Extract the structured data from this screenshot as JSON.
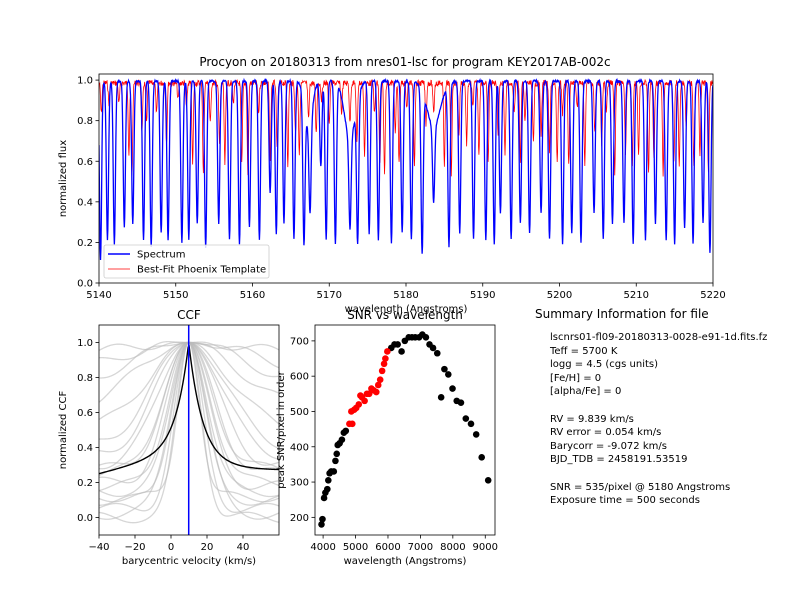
{
  "figure": {
    "title": "Procyon on 20180313 from nres01-lsc for program KEY2017AB-002c"
  },
  "colors": {
    "spectrum": "#0000ff",
    "template": "#ff0000",
    "ccf_mean": "#000000",
    "ccf_orders": "#bbbbbb",
    "ccf_rv_line": "#0000ff",
    "snr_black": "#000000",
    "snr_red": "#ff0000"
  },
  "chart_data": [
    {
      "id": "spectrum",
      "type": "line",
      "title": "",
      "xlabel": "wavelength (Angstroms)",
      "ylabel": "normalized flux",
      "xlim": [
        5140,
        5220
      ],
      "ylim": [
        0,
        1.03
      ],
      "xticks": [
        "5140",
        "5150",
        "5160",
        "5170",
        "5180",
        "5190",
        "5200",
        "5210",
        "5220"
      ],
      "yticks": [
        "0.0",
        "0.2",
        "0.4",
        "0.6",
        "0.8",
        "1.0"
      ],
      "legend": {
        "location": "lower-left",
        "entries": [
          "Spectrum",
          "Best-Fit Phoenix Template"
        ]
      },
      "series": [
        {
          "name": "Spectrum",
          "color": "#0000ff",
          "kind": "absorption lines, continuum ~1.0",
          "lines": [
            [
              5140.2,
              0.12
            ],
            [
              5141.1,
              0.22
            ],
            [
              5142.0,
              0.2
            ],
            [
              5143.3,
              0.28
            ],
            [
              5144.4,
              0.3
            ],
            [
              5145.8,
              0.22
            ],
            [
              5146.8,
              0.18
            ],
            [
              5148.1,
              0.25
            ],
            [
              5149.0,
              0.22
            ],
            [
              5150.8,
              0.2
            ],
            [
              5151.7,
              0.22
            ],
            [
              5152.8,
              0.3
            ],
            [
              5153.9,
              0.18
            ],
            [
              5155.6,
              0.3
            ],
            [
              5157.0,
              0.22
            ],
            [
              5158.3,
              0.2
            ],
            [
              5159.6,
              0.28
            ],
            [
              5160.9,
              0.22
            ],
            [
              5162.3,
              0.45
            ],
            [
              5163.1,
              0.25
            ],
            [
              5164.1,
              0.3
            ],
            [
              5165.4,
              0.22
            ],
            [
              5166.7,
              0.3
            ],
            [
              5167.5,
              0.55
            ],
            [
              5168.9,
              0.58
            ],
            [
              5169.6,
              0.22
            ],
            [
              5170.8,
              0.2
            ],
            [
              5172.7,
              0.55
            ],
            [
              5173.7,
              0.3
            ],
            [
              5175.2,
              0.25
            ],
            [
              5176.4,
              0.22
            ],
            [
              5178.1,
              0.2
            ],
            [
              5179.5,
              0.25
            ],
            [
              5180.7,
              0.22
            ],
            [
              5182.1,
              0.2
            ],
            [
              5183.6,
              0.62
            ],
            [
              5185.6,
              0.2
            ],
            [
              5187.0,
              0.25
            ],
            [
              5188.8,
              0.22
            ],
            [
              5190.4,
              0.22
            ],
            [
              5191.5,
              0.2
            ],
            [
              5192.3,
              0.35
            ],
            [
              5193.7,
              0.22
            ],
            [
              5194.9,
              0.3
            ],
            [
              5196.1,
              0.25
            ],
            [
              5197.6,
              0.35
            ],
            [
              5198.7,
              0.22
            ],
            [
              5200.4,
              0.2
            ],
            [
              5201.6,
              0.25
            ],
            [
              5202.8,
              0.2
            ],
            [
              5204.5,
              0.35
            ],
            [
              5205.7,
              0.22
            ],
            [
              5206.9,
              0.3
            ],
            [
              5208.4,
              0.3
            ],
            [
              5209.6,
              0.2
            ],
            [
              5211.2,
              0.22
            ],
            [
              5212.5,
              0.3
            ],
            [
              5213.9,
              0.22
            ],
            [
              5215.0,
              0.2
            ],
            [
              5216.3,
              0.28
            ],
            [
              5217.4,
              0.2
            ],
            [
              5218.7,
              0.3
            ],
            [
              5219.6,
              0.15
            ]
          ],
          "broad_lines": [
            [
              5167.3,
              0.78,
              0.5
            ],
            [
              5172.7,
              0.72,
              0.7
            ],
            [
              5183.6,
              0.78,
              0.9
            ]
          ]
        },
        {
          "name": "Best-Fit Phoenix Template",
          "color": "#ff0000",
          "kind": "absorption lines, continuum ~1.0",
          "lines": [
            [
              5140.3,
              0.85
            ],
            [
              5141.3,
              0.9
            ],
            [
              5142.6,
              0.9
            ],
            [
              5143.9,
              0.65
            ],
            [
              5144.3,
              0.55
            ],
            [
              5145.6,
              0.75
            ],
            [
              5146.2,
              0.8
            ],
            [
              5147.5,
              0.85
            ],
            [
              5148.8,
              0.7
            ],
            [
              5150.3,
              0.92
            ],
            [
              5151.4,
              0.88
            ],
            [
              5152.2,
              0.6
            ],
            [
              5153.6,
              0.55
            ],
            [
              5154.5,
              0.8
            ],
            [
              5155.7,
              0.7
            ],
            [
              5156.4,
              0.6
            ],
            [
              5157.5,
              0.9
            ],
            [
              5158.6,
              0.6
            ],
            [
              5159.4,
              0.55
            ],
            [
              5160.8,
              0.85
            ],
            [
              5162.3,
              0.62
            ],
            [
              5163.2,
              0.68
            ],
            [
              5164.6,
              0.6
            ],
            [
              5165.6,
              0.75
            ],
            [
              5166.1,
              0.65
            ],
            [
              5167.3,
              0.82
            ],
            [
              5168.3,
              0.75
            ],
            [
              5169.0,
              0.92
            ],
            [
              5170.0,
              0.8
            ],
            [
              5171.6,
              0.85
            ],
            [
              5172.7,
              0.8
            ],
            [
              5173.6,
              0.7
            ],
            [
              5174.6,
              0.65
            ],
            [
              5175.9,
              0.85
            ],
            [
              5176.6,
              0.6
            ],
            [
              5177.2,
              0.55
            ],
            [
              5178.6,
              0.75
            ],
            [
              5179.1,
              0.6
            ],
            [
              5180.1,
              0.88
            ],
            [
              5181.1,
              0.6
            ],
            [
              5182.6,
              0.8
            ],
            [
              5183.6,
              0.85
            ],
            [
              5185.0,
              0.6
            ],
            [
              5185.9,
              0.55
            ],
            [
              5186.9,
              0.75
            ],
            [
              5187.9,
              0.7
            ],
            [
              5188.7,
              0.88
            ],
            [
              5189.5,
              0.65
            ],
            [
              5190.7,
              0.6
            ],
            [
              5192.0,
              0.75
            ],
            [
              5192.9,
              0.65
            ],
            [
              5194.1,
              0.85
            ],
            [
              5194.9,
              0.6
            ],
            [
              5195.5,
              0.8
            ],
            [
              5196.6,
              0.7
            ],
            [
              5197.6,
              0.75
            ],
            [
              5198.7,
              0.65
            ],
            [
              5199.7,
              0.6
            ],
            [
              5200.4,
              0.85
            ],
            [
              5201.2,
              0.6
            ],
            [
              5202.3,
              0.88
            ],
            [
              5203.3,
              0.6
            ],
            [
              5204.6,
              0.75
            ],
            [
              5205.5,
              0.7
            ],
            [
              5206.1,
              0.85
            ],
            [
              5207.2,
              0.55
            ],
            [
              5208.6,
              0.65
            ],
            [
              5209.5,
              0.6
            ],
            [
              5210.3,
              0.65
            ],
            [
              5211.6,
              0.55
            ],
            [
              5212.3,
              0.62
            ],
            [
              5213.5,
              0.55
            ],
            [
              5214.9,
              0.6
            ],
            [
              5215.6,
              0.6
            ],
            [
              5216.5,
              0.8
            ],
            [
              5217.5,
              0.6
            ],
            [
              5218.3,
              0.65
            ],
            [
              5219.4,
              0.55
            ]
          ]
        }
      ]
    },
    {
      "id": "ccf",
      "type": "line",
      "title": "CCF",
      "xlabel": "barycentric velocity (km/s)",
      "ylabel": "normalized CCF",
      "xlim": [
        -40,
        60
      ],
      "ylim": [
        -0.1,
        1.1
      ],
      "xticks": [
        "−40",
        "−20",
        "0",
        "20",
        "40"
      ],
      "yticks": [
        "0.0",
        "0.2",
        "0.4",
        "0.6",
        "0.8",
        "1.0"
      ],
      "rv_line": 9.839,
      "mean_ccf": {
        "center": 9.839,
        "peak": 1.0,
        "baseline": 0.25,
        "wings_right": 0.27,
        "width": 7
      },
      "order_ccfs": [
        {
          "base": 0.9,
          "width": 40
        },
        {
          "base": 0.82,
          "width": 35
        },
        {
          "base": 0.75,
          "width": 30
        },
        {
          "base": 0.6,
          "width": 28
        },
        {
          "base": 0.5,
          "width": 22
        },
        {
          "base": 0.35,
          "width": 18
        },
        {
          "base": 0.3,
          "width": 16
        },
        {
          "base": 0.25,
          "width": 14
        },
        {
          "base": 0.2,
          "width": 12
        },
        {
          "base": 0.15,
          "width": 10
        },
        {
          "base": 0.1,
          "width": 9
        },
        {
          "base": 0.05,
          "width": 8
        },
        {
          "base": 0.0,
          "width": 7
        },
        {
          "base": 0.12,
          "width": 6
        },
        {
          "base": 0.18,
          "width": 11
        },
        {
          "base": 0.28,
          "width": 13
        },
        {
          "base": 0.4,
          "width": 20
        },
        {
          "base": 0.02,
          "width": 10
        }
      ]
    },
    {
      "id": "snr",
      "type": "scatter",
      "title": "SNR vs wavelength",
      "xlabel": "wavelength (Angstroms)",
      "ylabel": "peak SNR/pixel in order",
      "xlim": [
        3750,
        9300
      ],
      "ylim": [
        150,
        745
      ],
      "xticks": [
        "4000",
        "5000",
        "6000",
        "7000",
        "8000",
        "9000"
      ],
      "yticks": [
        "200",
        "300",
        "400",
        "500",
        "600",
        "700"
      ],
      "series": [
        {
          "name": "orders",
          "color": "#000000",
          "points": [
            [
              3950,
              180
            ],
            [
              3980,
              195
            ],
            [
              4030,
              255
            ],
            [
              4070,
              270
            ],
            [
              4130,
              280
            ],
            [
              4160,
              305
            ],
            [
              4200,
              325
            ],
            [
              4250,
              330
            ],
            [
              4330,
              330
            ],
            [
              4380,
              360
            ],
            [
              4420,
              380
            ],
            [
              4450,
              405
            ],
            [
              4510,
              410
            ],
            [
              4580,
              420
            ],
            [
              4640,
              440
            ],
            [
              4700,
              445
            ],
            [
              6100,
              680
            ],
            [
              6200,
              690
            ],
            [
              6300,
              690
            ],
            [
              6420,
              670
            ],
            [
              6520,
              700
            ],
            [
              6640,
              710
            ],
            [
              6740,
              710
            ],
            [
              6840,
              710
            ],
            [
              6960,
              710
            ],
            [
              7060,
              718
            ],
            [
              7170,
              710
            ],
            [
              7280,
              690
            ],
            [
              7390,
              680
            ],
            [
              7520,
              665
            ],
            [
              7640,
              540
            ],
            [
              7740,
              620
            ],
            [
              7860,
              605
            ],
            [
              7990,
              565
            ],
            [
              8120,
              530
            ],
            [
              8250,
              525
            ],
            [
              8400,
              480
            ],
            [
              8560,
              465
            ],
            [
              8720,
              435
            ],
            [
              8890,
              370
            ],
            [
              9090,
              305
            ]
          ]
        },
        {
          "name": "fit orders",
          "color": "#ff0000",
          "points": [
            [
              4810,
              465
            ],
            [
              4870,
              500
            ],
            [
              4900,
              465
            ],
            [
              4960,
              505
            ],
            [
              5020,
              510
            ],
            [
              5100,
              520
            ],
            [
              5150,
              545
            ],
            [
              5200,
              540
            ],
            [
              5280,
              530
            ],
            [
              5350,
              550
            ],
            [
              5420,
              550
            ],
            [
              5490,
              565
            ],
            [
              5560,
              560
            ],
            [
              5640,
              555
            ],
            [
              5700,
              575
            ],
            [
              5760,
              590
            ],
            [
              5820,
              615
            ],
            [
              5880,
              635
            ],
            [
              5920,
              650
            ],
            [
              5980,
              670
            ]
          ]
        }
      ]
    }
  ],
  "summary": {
    "title": "Summary Information for file",
    "lines": [
      "lscnrs01-fl09-20180313-0028-e91-1d.fits.fz",
      "Teff = 5700 K",
      "logg = 4.5 (cgs units)",
      "[Fe/H] = 0",
      "[alpha/Fe] = 0",
      "",
      "RV = 9.839 km/s",
      "RV error = 0.054 km/s",
      "Barycorr = -9.072 km/s",
      "BJD_TDB = 2458191.53519",
      "",
      "SNR = 535/pixel @ 5180 Angstroms",
      "Exposure time = 500 seconds"
    ]
  }
}
